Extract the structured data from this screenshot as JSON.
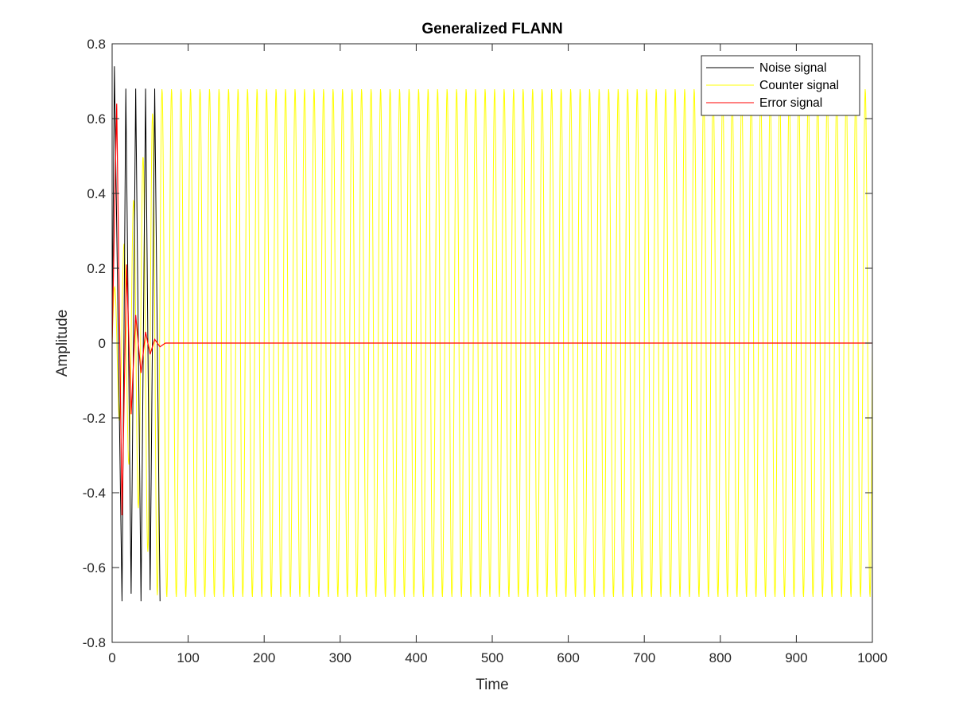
{
  "chart_data": {
    "type": "line",
    "title": "Generalized FLANN",
    "xlabel": "Time",
    "ylabel": "Amplitude",
    "xlim": [
      0,
      1000
    ],
    "ylim": [
      -0.8,
      0.8
    ],
    "x_ticks": [
      0,
      100,
      200,
      300,
      400,
      500,
      600,
      700,
      800,
      900,
      1000
    ],
    "y_ticks": [
      -0.8,
      -0.6,
      -0.4,
      -0.2,
      0,
      0.2,
      0.4,
      0.6,
      0.8
    ],
    "x_tick_labels": [
      "0",
      "100",
      "200",
      "300",
      "400",
      "500",
      "600",
      "700",
      "800",
      "900",
      "1000"
    ],
    "y_tick_labels": [
      "-0.8",
      "-0.6",
      "-0.4",
      "-0.2",
      "0",
      "0.2",
      "0.4",
      "0.6",
      "0.8"
    ],
    "grid": false,
    "box": true,
    "legend_position": "top-right",
    "series": [
      {
        "name": "Noise signal",
        "color": "#000000",
        "period": 12.5,
        "peaks": [
          [
            3,
            0.74
          ],
          [
            18,
            0.68
          ],
          [
            31,
            0.68
          ],
          [
            44,
            0.68
          ],
          [
            56,
            0.68
          ]
        ],
        "troughs": [
          [
            13,
            -0.69
          ],
          [
            25,
            -0.67
          ],
          [
            38,
            -0.69
          ],
          [
            50,
            -0.66
          ],
          [
            63,
            -0.69
          ]
        ],
        "amplitude_after_convergence": 0.68,
        "visible_until_x": 70,
        "note_values": "sinusoid with peaks near 0.68 and troughs near -0.69"
      },
      {
        "name": "Counter signal",
        "color": "#ffff00",
        "period": 12.5,
        "start_amplitude": 0.12,
        "amplitude": 0.68,
        "x_range": [
          0,
          1000
        ]
      },
      {
        "name": "Error signal",
        "color": "#ff0000",
        "peaks": [
          [
            6,
            0.64
          ],
          [
            19,
            0.21
          ],
          [
            31,
            0.075
          ],
          [
            44,
            0.03
          ],
          [
            56,
            0.01
          ]
        ],
        "troughs": [
          [
            13,
            -0.46
          ],
          [
            25,
            -0.19
          ],
          [
            38,
            -0.08
          ],
          [
            50,
            -0.03
          ],
          [
            63,
            -0.01
          ]
        ],
        "converged_value": 0,
        "x_range": [
          0,
          1000
        ]
      }
    ]
  }
}
